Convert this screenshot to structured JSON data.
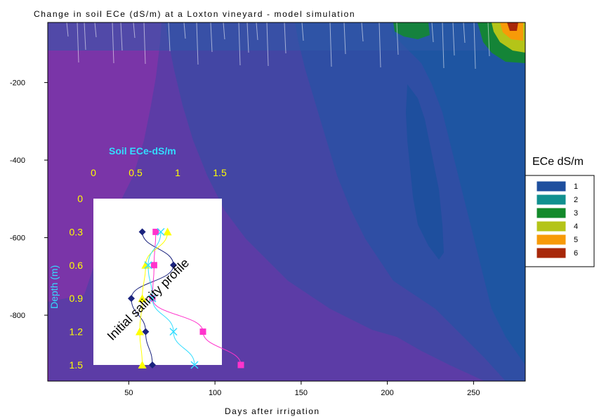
{
  "chart_data": [
    {
      "type": "heatmap",
      "title": "Change in soil ECe (dS/m) at a Loxton vineyard - model simulation",
      "xlabel": "Days after irrigation",
      "ylabel": "",
      "xlim": [
        3,
        280
      ],
      "ylim": [
        -970,
        -45
      ],
      "x_ticks": [
        50,
        100,
        150,
        200,
        250
      ],
      "y_ticks": [
        -200,
        -400,
        -600,
        -800
      ],
      "legend": {
        "title": "ECe dS/m",
        "placement": "right",
        "items": [
          {
            "label": "1",
            "color": "#1e4f9e"
          },
          {
            "label": "2",
            "color": "#11908f"
          },
          {
            "label": "3",
            "color": "#138a2b"
          },
          {
            "label": "4",
            "color": "#b4c418"
          },
          {
            "label": "5",
            "color": "#f79a08"
          },
          {
            "label": "6",
            "color": "#a8280a"
          }
        ]
      },
      "fill_colors": {
        "low": "#7a35a8",
        "low_mid": "#5c3ca6",
        "mid": "#4346a4",
        "mid_high": "#2f4ea4",
        "high": "#1e55a2"
      }
    },
    {
      "type": "line",
      "title": "Initial salinity profile",
      "xlabel": "Soil ECe-dS/m",
      "ylabel": "Depth (m)",
      "xlim": [
        0,
        1.5
      ],
      "ylim": [
        0,
        1.5
      ],
      "x_ticks": [
        "0",
        "0.5",
        "1",
        "1.5"
      ],
      "y_ticks": [
        "0",
        "0.3",
        "0.6",
        "0.9",
        "1.2",
        "1.5"
      ],
      "series": [
        {
          "marker": "diamond",
          "color": "#1a237e",
          "x": [
            0.58,
            0.95,
            0.45,
            0.62,
            0.7
          ],
          "y": [
            0.3,
            0.6,
            0.9,
            1.2,
            1.5
          ]
        },
        {
          "marker": "square",
          "color": "#ff33cc",
          "x": [
            0.74,
            0.72,
            0.7,
            1.3,
            1.75
          ],
          "y": [
            0.3,
            0.6,
            0.9,
            1.2,
            1.5
          ]
        },
        {
          "marker": "triangle",
          "color": "#ffff00",
          "x": [
            0.88,
            0.62,
            0.58,
            0.55,
            0.58
          ],
          "y": [
            0.3,
            0.6,
            0.9,
            1.2,
            1.5
          ]
        },
        {
          "marker": "x",
          "color": "#33ddff",
          "x": [
            0.8,
            0.65,
            0.7,
            0.95,
            1.2
          ],
          "y": [
            0.3,
            0.6,
            0.9,
            1.2,
            1.5
          ]
        }
      ]
    }
  ]
}
